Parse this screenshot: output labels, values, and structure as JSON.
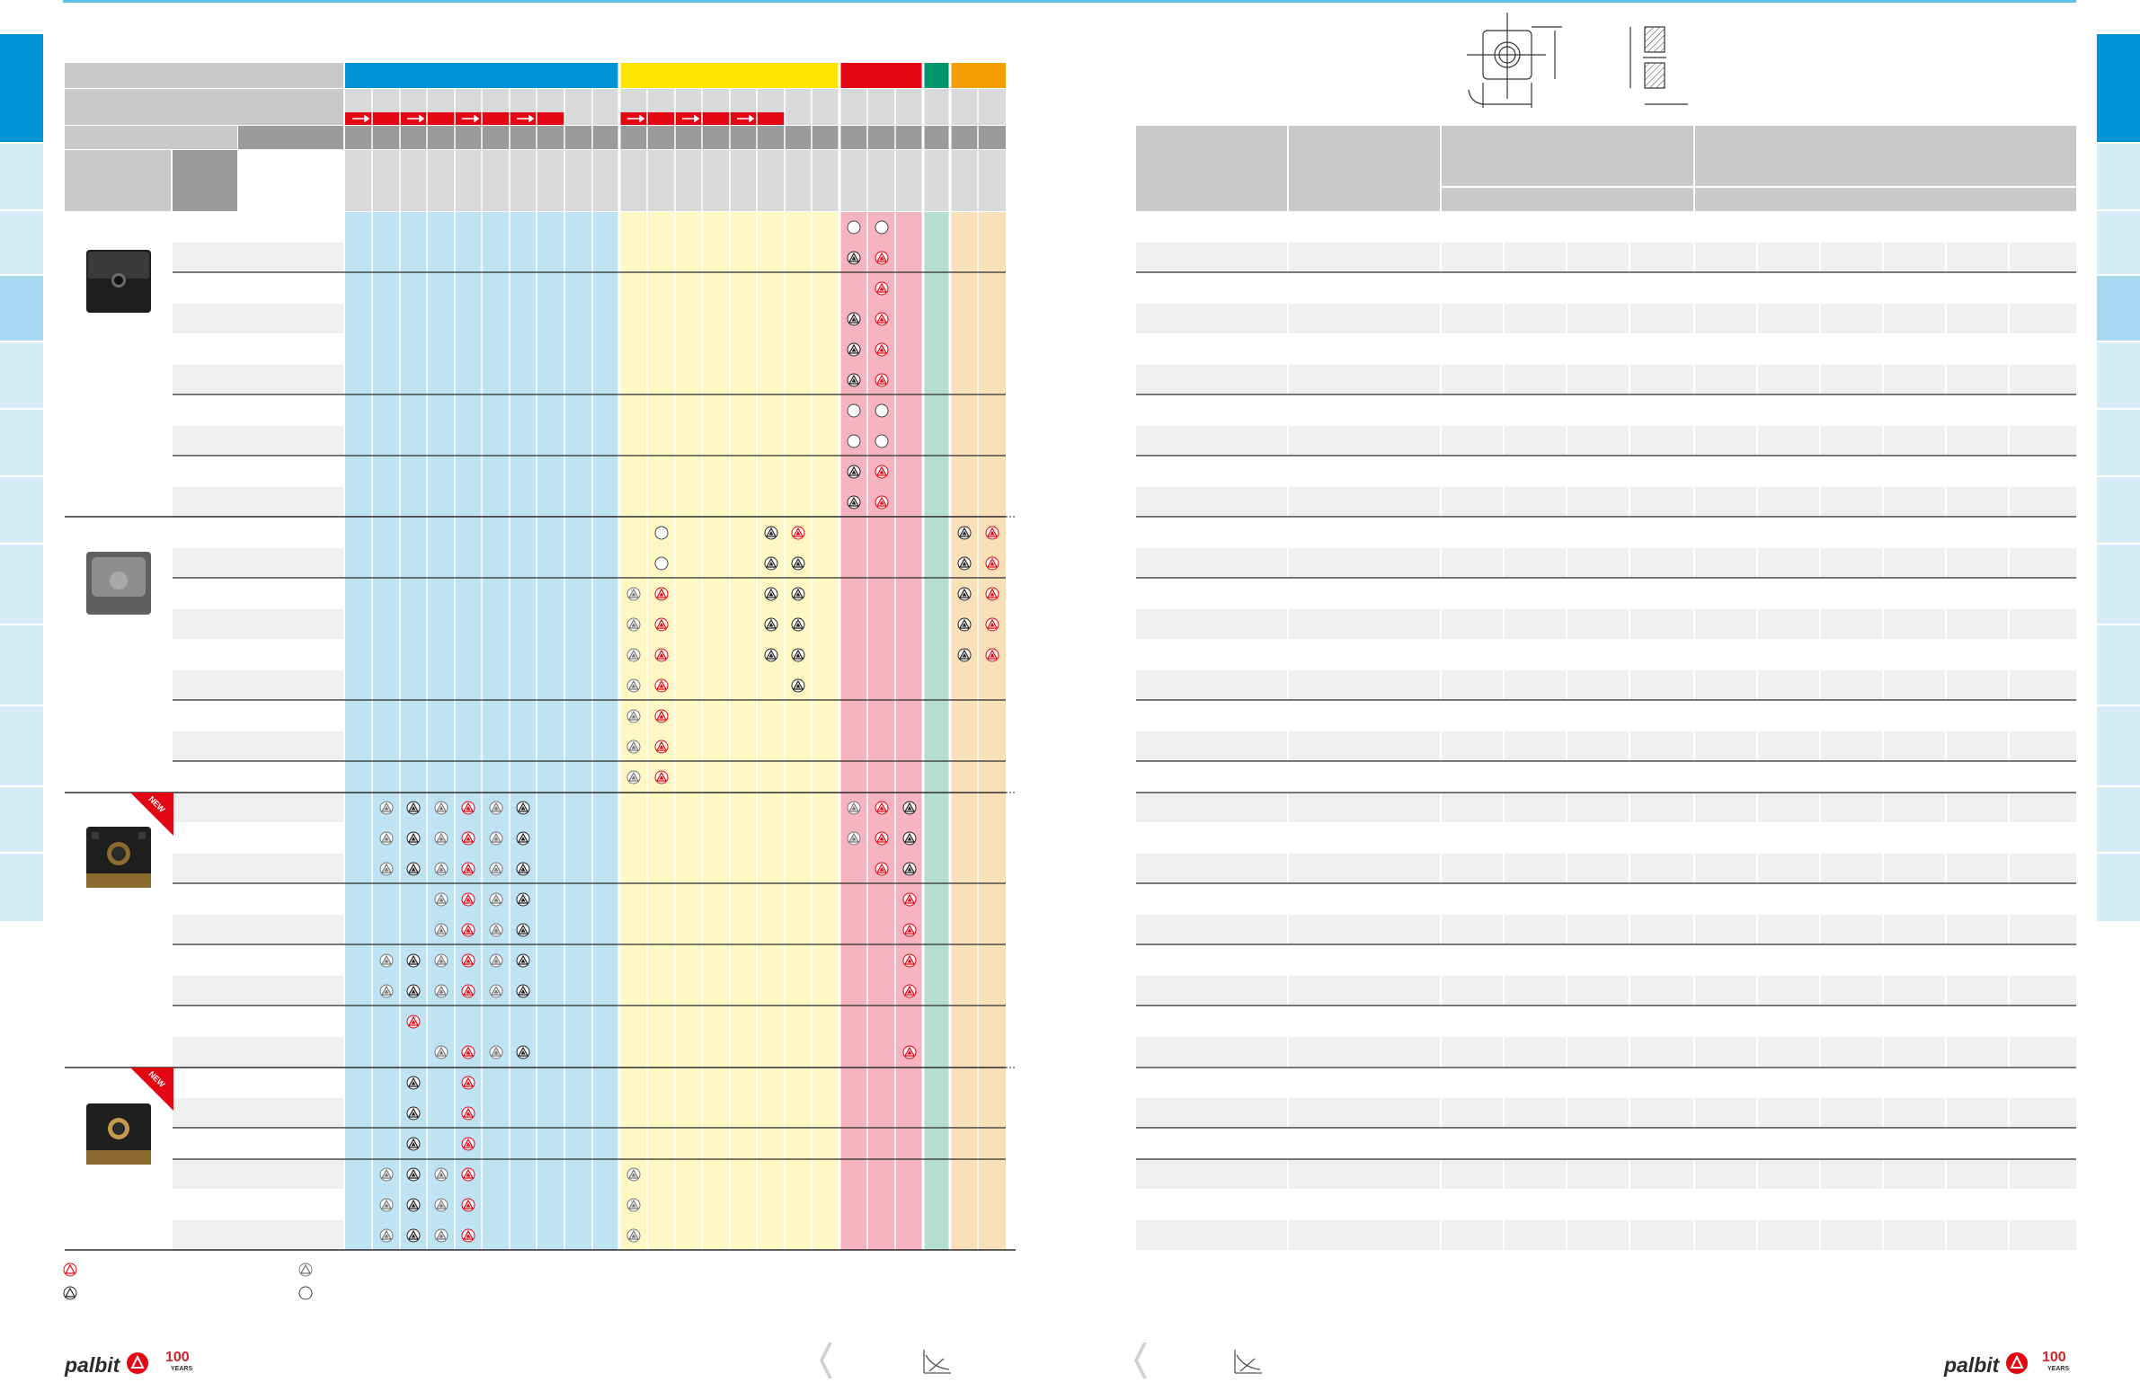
{
  "badge": {
    "new_label": "NEW"
  },
  "brand": {
    "name": "palbit",
    "anniversary": "100",
    "years_label": "YEARS"
  },
  "colors": {
    "blue": "#0096d6",
    "blue_light": "#c0e3f4",
    "yellow": "#ffe600",
    "yellow_light": "#fff8c4",
    "red": "#e30613",
    "red_light": "#f6b3c0",
    "green": "#00966b",
    "green_light": "#b5ddd0",
    "orange": "#f29f05",
    "orange_light": "#f8e0b8",
    "grey_header": "#c8c9cb",
    "grey_dark": "#9a9b9d",
    "row_shade": "#eeefef",
    "tab_dark": "#0096d6",
    "tab_light": "#cfe9f6"
  },
  "legend": [
    {
      "symbol": "red-triangle-icon"
    },
    {
      "symbol": "black-triangle-icon"
    },
    {
      "symbol": "grey-triangle-icon"
    },
    {
      "symbol": "circle-icon"
    }
  ]
}
